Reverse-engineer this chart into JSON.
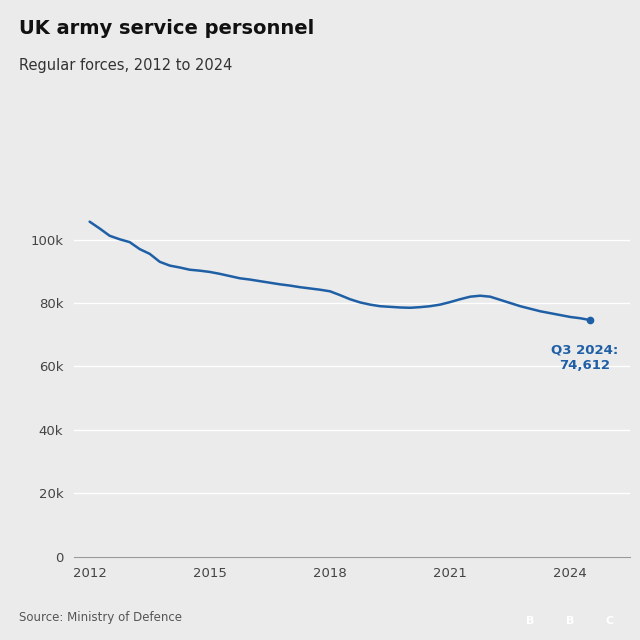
{
  "title": "UK army service personnel",
  "subtitle": "Regular forces, 2012 to 2024",
  "source": "Source: Ministry of Defence",
  "line_color": "#1f5fa6",
  "background_color": "#ebebeb",
  "annotation_text": "Q3 2024:\n74,612",
  "annotation_color": "#1f5fa6",
  "ylim": [
    0,
    115000
  ],
  "yticks": [
    0,
    20000,
    40000,
    60000,
    80000,
    100000
  ],
  "xlabel_years": [
    2012,
    2015,
    2018,
    2021,
    2024
  ],
  "xlim_min": 2011.6,
  "xlim_max": 2025.5,
  "data": [
    [
      2012.0,
      105650
    ],
    [
      2012.25,
      103500
    ],
    [
      2012.5,
      101200
    ],
    [
      2012.75,
      100100
    ],
    [
      2013.0,
      99200
    ],
    [
      2013.25,
      97000
    ],
    [
      2013.5,
      95500
    ],
    [
      2013.75,
      93000
    ],
    [
      2014.0,
      91800
    ],
    [
      2014.25,
      91200
    ],
    [
      2014.5,
      90500
    ],
    [
      2014.75,
      90200
    ],
    [
      2015.0,
      89800
    ],
    [
      2015.25,
      89200
    ],
    [
      2015.5,
      88500
    ],
    [
      2015.75,
      87800
    ],
    [
      2016.0,
      87400
    ],
    [
      2016.25,
      86900
    ],
    [
      2016.5,
      86400
    ],
    [
      2016.75,
      85900
    ],
    [
      2017.0,
      85500
    ],
    [
      2017.25,
      85000
    ],
    [
      2017.5,
      84600
    ],
    [
      2017.75,
      84200
    ],
    [
      2018.0,
      83700
    ],
    [
      2018.25,
      82500
    ],
    [
      2018.5,
      81200
    ],
    [
      2018.75,
      80200
    ],
    [
      2019.0,
      79500
    ],
    [
      2019.25,
      79000
    ],
    [
      2019.5,
      78800
    ],
    [
      2019.75,
      78600
    ],
    [
      2020.0,
      78500
    ],
    [
      2020.25,
      78700
    ],
    [
      2020.5,
      79000
    ],
    [
      2020.75,
      79500
    ],
    [
      2021.0,
      80300
    ],
    [
      2021.25,
      81200
    ],
    [
      2021.5,
      82000
    ],
    [
      2021.75,
      82300
    ],
    [
      2022.0,
      82000
    ],
    [
      2022.25,
      81000
    ],
    [
      2022.5,
      80000
    ],
    [
      2022.75,
      79000
    ],
    [
      2023.0,
      78200
    ],
    [
      2023.25,
      77400
    ],
    [
      2023.5,
      76800
    ],
    [
      2023.75,
      76200
    ],
    [
      2024.0,
      75600
    ],
    [
      2024.25,
      75200
    ],
    [
      2024.5,
      74612
    ]
  ]
}
